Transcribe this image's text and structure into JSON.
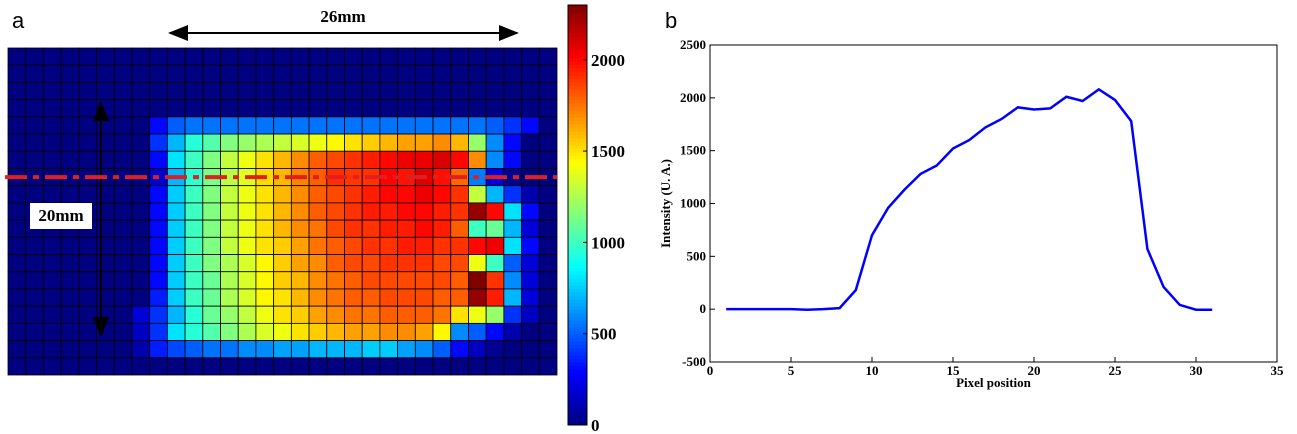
{
  "chart_data": [
    {
      "type": "heatmap",
      "panel": "a",
      "annotations": [
        "26mm",
        "20mm"
      ],
      "highlight_row": 7,
      "zlim": [
        0,
        2300
      ],
      "zticks": [
        0,
        500,
        1000,
        1500,
        2000
      ],
      "z": [
        [
          0,
          0,
          0,
          0,
          0,
          0,
          0,
          0,
          0,
          0,
          0,
          0,
          0,
          0,
          0,
          0,
          0,
          0,
          0,
          0,
          0,
          0,
          0,
          0,
          0,
          0,
          0,
          0,
          0,
          0,
          0
        ],
        [
          0,
          0,
          0,
          0,
          0,
          0,
          0,
          0,
          0,
          0,
          0,
          0,
          0,
          0,
          0,
          0,
          0,
          0,
          0,
          0,
          0,
          0,
          0,
          0,
          0,
          0,
          0,
          0,
          0,
          0,
          0
        ],
        [
          0,
          0,
          0,
          0,
          0,
          0,
          0,
          0,
          0,
          0,
          0,
          0,
          0,
          0,
          0,
          0,
          0,
          0,
          0,
          0,
          0,
          0,
          0,
          0,
          0,
          0,
          0,
          0,
          0,
          0,
          0
        ],
        [
          0,
          0,
          0,
          0,
          0,
          0,
          0,
          0,
          0,
          0,
          0,
          0,
          0,
          0,
          0,
          0,
          0,
          0,
          0,
          0,
          0,
          0,
          0,
          0,
          0,
          0,
          0,
          0,
          0,
          0,
          0
        ],
        [
          0,
          0,
          0,
          0,
          0,
          0,
          0,
          0,
          300,
          500,
          550,
          550,
          550,
          550,
          550,
          550,
          550,
          550,
          550,
          550,
          550,
          550,
          550,
          550,
          550,
          550,
          550,
          500,
          400,
          300,
          0
        ],
        [
          0,
          0,
          0,
          0,
          0,
          0,
          0,
          0,
          400,
          700,
          950,
          1050,
          1150,
          1200,
          1250,
          1300,
          1350,
          1400,
          1450,
          1500,
          1550,
          1600,
          1650,
          1650,
          1700,
          1600,
          1200,
          600,
          300,
          0,
          0
        ],
        [
          0,
          0,
          0,
          0,
          0,
          0,
          0,
          0,
          300,
          800,
          1000,
          1150,
          1300,
          1400,
          1500,
          1600,
          1700,
          1800,
          1850,
          1900,
          1950,
          2000,
          2050,
          2050,
          2100,
          2000,
          1700,
          600,
          300,
          0,
          0
        ],
        [
          0,
          0,
          0,
          0,
          0,
          0,
          0,
          10,
          180,
          700,
          960,
          1130,
          1280,
          1360,
          1520,
          1600,
          1720,
          1800,
          1910,
          1890,
          1900,
          2010,
          1970,
          2080,
          1980,
          1780,
          570,
          210,
          40,
          0,
          0
        ],
        [
          0,
          0,
          0,
          0,
          0,
          0,
          0,
          0,
          300,
          750,
          1000,
          1150,
          1300,
          1400,
          1500,
          1600,
          1700,
          1800,
          1850,
          1900,
          1950,
          2000,
          2000,
          2050,
          2000,
          1900,
          1300,
          700,
          400,
          100,
          0
        ],
        [
          0,
          0,
          0,
          0,
          0,
          0,
          0,
          0,
          300,
          750,
          1000,
          1150,
          1300,
          1400,
          1500,
          1600,
          1700,
          1800,
          1850,
          1900,
          1950,
          1950,
          2000,
          2000,
          1950,
          1900,
          2250,
          2000,
          800,
          300,
          0
        ],
        [
          0,
          0,
          0,
          0,
          0,
          0,
          0,
          0,
          300,
          750,
          1000,
          1150,
          1300,
          1400,
          1500,
          1600,
          1700,
          1750,
          1850,
          1900,
          1900,
          1950,
          1950,
          2000,
          1950,
          1800,
          1000,
          1100,
          700,
          200,
          0
        ],
        [
          0,
          0,
          0,
          0,
          0,
          0,
          0,
          0,
          300,
          750,
          1000,
          1150,
          1300,
          1400,
          1500,
          1550,
          1650,
          1750,
          1800,
          1850,
          1900,
          1900,
          1950,
          1950,
          1900,
          1900,
          2000,
          2050,
          800,
          300,
          0
        ],
        [
          0,
          0,
          0,
          0,
          0,
          0,
          0,
          0,
          300,
          750,
          1000,
          1150,
          1250,
          1350,
          1450,
          1550,
          1650,
          1700,
          1800,
          1850,
          1850,
          1900,
          1900,
          1900,
          1850,
          1850,
          1400,
          1000,
          500,
          200,
          0
        ],
        [
          0,
          0,
          0,
          0,
          0,
          0,
          0,
          0,
          300,
          750,
          1000,
          1100,
          1250,
          1350,
          1450,
          1550,
          1600,
          1700,
          1750,
          1800,
          1850,
          1850,
          1850,
          1850,
          1850,
          1800,
          2300,
          1900,
          600,
          200,
          0
        ],
        [
          0,
          0,
          0,
          0,
          0,
          0,
          0,
          0,
          350,
          750,
          1000,
          1100,
          1250,
          1350,
          1450,
          1500,
          1600,
          1700,
          1750,
          1800,
          1800,
          1850,
          1850,
          1850,
          1800,
          1800,
          2250,
          1950,
          700,
          200,
          0
        ],
        [
          0,
          0,
          0,
          0,
          0,
          0,
          0,
          200,
          400,
          700,
          950,
          1100,
          1200,
          1300,
          1400,
          1500,
          1550,
          1650,
          1700,
          1750,
          1750,
          1800,
          1800,
          1800,
          1750,
          1500,
          1400,
          1200,
          400,
          150,
          0
        ],
        [
          0,
          0,
          0,
          0,
          0,
          0,
          0,
          150,
          400,
          800,
          950,
          1050,
          1150,
          1250,
          1350,
          1400,
          1500,
          1550,
          1600,
          1650,
          1650,
          1700,
          1700,
          1650,
          1450,
          600,
          500,
          300,
          100,
          0,
          0
        ],
        [
          0,
          0,
          0,
          0,
          0,
          0,
          0,
          100,
          350,
          450,
          500,
          550,
          550,
          600,
          600,
          650,
          650,
          700,
          700,
          700,
          750,
          750,
          650,
          600,
          500,
          300,
          150,
          50,
          0,
          0,
          0
        ],
        [
          0,
          0,
          0,
          0,
          0,
          0,
          0,
          0,
          0,
          0,
          0,
          0,
          0,
          0,
          0,
          0,
          0,
          0,
          0,
          0,
          0,
          0,
          0,
          0,
          0,
          0,
          0,
          0,
          0,
          0,
          0
        ]
      ]
    },
    {
      "type": "line",
      "panel": "b",
      "x_label": "Pixel position",
      "y_label": "Intensity (U. A.)",
      "x": [
        1,
        2,
        3,
        4,
        5,
        6,
        7,
        8,
        9,
        10,
        11,
        12,
        13,
        14,
        15,
        16,
        17,
        18,
        19,
        20,
        21,
        22,
        23,
        24,
        25,
        26,
        27,
        28,
        29,
        30,
        31
      ],
      "series": [
        {
          "color": "#0000ff",
          "values": [
            0,
            0,
            0,
            0,
            0,
            -5,
            0,
            10,
            180,
            700,
            960,
            1130,
            1280,
            1360,
            1520,
            1600,
            1720,
            1800,
            1910,
            1890,
            1900,
            2010,
            1970,
            2080,
            1980,
            1780,
            570,
            210,
            40,
            -5,
            -5
          ]
        }
      ],
      "xlim": [
        0,
        35
      ],
      "xticks": [
        0,
        5,
        10,
        15,
        20,
        25,
        30,
        35
      ],
      "ylim": [
        -500,
        2500
      ],
      "yticks": [
        -500,
        0,
        500,
        1000,
        1500,
        2000,
        2500
      ]
    }
  ]
}
